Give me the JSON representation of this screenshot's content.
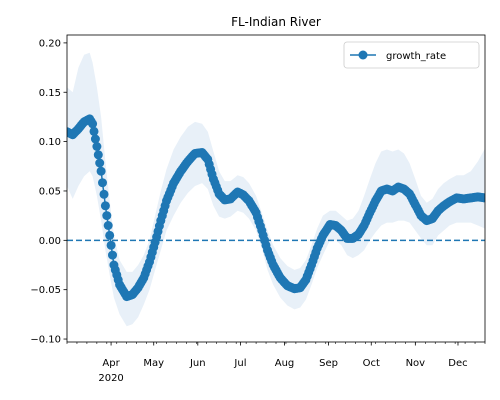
{
  "chart_data": {
    "type": "line",
    "title": "FL-Indian River",
    "xlabel": "",
    "ylabel": "",
    "x_ticks": [
      {
        "date": "2020-04-01",
        "label": "Apr",
        "sublabel": "2020"
      },
      {
        "date": "2020-05-01",
        "label": "May",
        "sublabel": ""
      },
      {
        "date": "2020-06-01",
        "label": "Jun",
        "sublabel": ""
      },
      {
        "date": "2020-07-01",
        "label": "Jul",
        "sublabel": ""
      },
      {
        "date": "2020-08-01",
        "label": "Aug",
        "sublabel": ""
      },
      {
        "date": "2020-09-01",
        "label": "Sep",
        "sublabel": ""
      },
      {
        "date": "2020-10-01",
        "label": "Oct",
        "sublabel": ""
      },
      {
        "date": "2020-11-01",
        "label": "Nov",
        "sublabel": ""
      },
      {
        "date": "2020-12-01",
        "label": "Dec",
        "sublabel": ""
      }
    ],
    "y_ticks": [
      -0.1,
      -0.05,
      0.0,
      0.05,
      0.1,
      0.15,
      0.2
    ],
    "y_tick_labels": [
      "−0.10",
      "−0.05",
      "0.00",
      "0.05",
      "0.10",
      "0.15",
      "0.20"
    ],
    "xlim": [
      "2020-03-01",
      "2020-12-20"
    ],
    "ylim": [
      -0.103,
      0.208
    ],
    "reference_line": {
      "y": 0.0,
      "style": "dashed",
      "color": "#1f77b4"
    },
    "legend": {
      "position": "top-right",
      "entries": [
        "growth_rate"
      ]
    },
    "colors": {
      "series": "#1f77b4",
      "band": "#e8f0f8"
    },
    "series": [
      {
        "name": "growth_rate",
        "points": [
          [
            "2020-03-01",
            0.11
          ],
          [
            "2020-03-05",
            0.107
          ],
          [
            "2020-03-09",
            0.113
          ],
          [
            "2020-03-13",
            0.12
          ],
          [
            "2020-03-17",
            0.123
          ],
          [
            "2020-03-19",
            0.118
          ],
          [
            "2020-03-22",
            0.095
          ],
          [
            "2020-03-25",
            0.07
          ],
          [
            "2020-03-28",
            0.035
          ],
          [
            "2020-03-31",
            0.005
          ],
          [
            "2020-04-03",
            -0.025
          ],
          [
            "2020-04-07",
            -0.045
          ],
          [
            "2020-04-12",
            -0.057
          ],
          [
            "2020-04-16",
            -0.055
          ],
          [
            "2020-04-20",
            -0.048
          ],
          [
            "2020-04-24",
            -0.038
          ],
          [
            "2020-04-28",
            -0.022
          ],
          [
            "2020-05-02",
            -0.002
          ],
          [
            "2020-05-06",
            0.02
          ],
          [
            "2020-05-10",
            0.04
          ],
          [
            "2020-05-15",
            0.058
          ],
          [
            "2020-05-20",
            0.07
          ],
          [
            "2020-05-25",
            0.08
          ],
          [
            "2020-05-30",
            0.088
          ],
          [
            "2020-06-04",
            0.089
          ],
          [
            "2020-06-08",
            0.082
          ],
          [
            "2020-06-12",
            0.062
          ],
          [
            "2020-06-16",
            0.047
          ],
          [
            "2020-06-20",
            0.041
          ],
          [
            "2020-06-24",
            0.042
          ],
          [
            "2020-06-29",
            0.049
          ],
          [
            "2020-07-03",
            0.046
          ],
          [
            "2020-07-07",
            0.04
          ],
          [
            "2020-07-12",
            0.028
          ],
          [
            "2020-07-16",
            0.01
          ],
          [
            "2020-07-20",
            -0.01
          ],
          [
            "2020-07-24",
            -0.025
          ],
          [
            "2020-07-29",
            -0.038
          ],
          [
            "2020-08-03",
            -0.046
          ],
          [
            "2020-08-08",
            -0.049
          ],
          [
            "2020-08-12",
            -0.048
          ],
          [
            "2020-08-16",
            -0.04
          ],
          [
            "2020-08-20",
            -0.025
          ],
          [
            "2020-08-24",
            -0.008
          ],
          [
            "2020-08-28",
            0.005
          ],
          [
            "2020-09-02",
            0.016
          ],
          [
            "2020-09-06",
            0.015
          ],
          [
            "2020-09-10",
            0.01
          ],
          [
            "2020-09-14",
            0.002
          ],
          [
            "2020-09-18",
            0.002
          ],
          [
            "2020-09-22",
            0.006
          ],
          [
            "2020-09-26",
            0.015
          ],
          [
            "2020-09-30",
            0.028
          ],
          [
            "2020-10-04",
            0.04
          ],
          [
            "2020-10-08",
            0.05
          ],
          [
            "2020-10-12",
            0.052
          ],
          [
            "2020-10-16",
            0.05
          ],
          [
            "2020-10-20",
            0.054
          ],
          [
            "2020-10-24",
            0.052
          ],
          [
            "2020-10-28",
            0.047
          ],
          [
            "2020-11-01",
            0.036
          ],
          [
            "2020-11-05",
            0.025
          ],
          [
            "2020-11-09",
            0.02
          ],
          [
            "2020-11-13",
            0.022
          ],
          [
            "2020-11-17",
            0.03
          ],
          [
            "2020-11-21",
            0.035
          ],
          [
            "2020-11-25",
            0.039
          ],
          [
            "2020-11-30",
            0.043
          ],
          [
            "2020-12-05",
            0.042
          ],
          [
            "2020-12-10",
            0.043
          ],
          [
            "2020-12-15",
            0.044
          ],
          [
            "2020-12-20",
            0.043
          ]
        ],
        "band_upper": [
          [
            "2020-03-01",
            0.155
          ],
          [
            "2020-03-05",
            0.15
          ],
          [
            "2020-03-09",
            0.175
          ],
          [
            "2020-03-13",
            0.188
          ],
          [
            "2020-03-17",
            0.19
          ],
          [
            "2020-03-19",
            0.18
          ],
          [
            "2020-03-22",
            0.155
          ],
          [
            "2020-03-25",
            0.125
          ],
          [
            "2020-03-28",
            0.08
          ],
          [
            "2020-03-31",
            0.04
          ],
          [
            "2020-04-03",
            0.005
          ],
          [
            "2020-04-07",
            -0.02
          ],
          [
            "2020-04-12",
            -0.032
          ],
          [
            "2020-04-16",
            -0.032
          ],
          [
            "2020-04-20",
            -0.025
          ],
          [
            "2020-04-24",
            -0.015
          ],
          [
            "2020-04-28",
            0.0
          ],
          [
            "2020-05-02",
            0.025
          ],
          [
            "2020-05-06",
            0.05
          ],
          [
            "2020-05-10",
            0.072
          ],
          [
            "2020-05-15",
            0.092
          ],
          [
            "2020-05-20",
            0.105
          ],
          [
            "2020-05-25",
            0.115
          ],
          [
            "2020-05-30",
            0.12
          ],
          [
            "2020-06-04",
            0.118
          ],
          [
            "2020-06-08",
            0.11
          ],
          [
            "2020-06-12",
            0.09
          ],
          [
            "2020-06-16",
            0.07
          ],
          [
            "2020-06-20",
            0.06
          ],
          [
            "2020-06-24",
            0.06
          ],
          [
            "2020-06-29",
            0.066
          ],
          [
            "2020-07-03",
            0.064
          ],
          [
            "2020-07-07",
            0.058
          ],
          [
            "2020-07-12",
            0.045
          ],
          [
            "2020-07-16",
            0.028
          ],
          [
            "2020-07-20",
            0.01
          ],
          [
            "2020-07-24",
            -0.005
          ],
          [
            "2020-07-29",
            -0.018
          ],
          [
            "2020-08-03",
            -0.026
          ],
          [
            "2020-08-08",
            -0.03
          ],
          [
            "2020-08-12",
            -0.028
          ],
          [
            "2020-08-16",
            -0.02
          ],
          [
            "2020-08-20",
            -0.005
          ],
          [
            "2020-08-24",
            0.012
          ],
          [
            "2020-08-28",
            0.025
          ],
          [
            "2020-09-02",
            0.03
          ],
          [
            "2020-09-06",
            0.03
          ],
          [
            "2020-09-10",
            0.025
          ],
          [
            "2020-09-14",
            0.02
          ],
          [
            "2020-09-18",
            0.022
          ],
          [
            "2020-09-22",
            0.03
          ],
          [
            "2020-09-26",
            0.045
          ],
          [
            "2020-09-30",
            0.062
          ],
          [
            "2020-10-04",
            0.078
          ],
          [
            "2020-10-08",
            0.09
          ],
          [
            "2020-10-12",
            0.092
          ],
          [
            "2020-10-16",
            0.09
          ],
          [
            "2020-10-20",
            0.092
          ],
          [
            "2020-10-24",
            0.088
          ],
          [
            "2020-10-28",
            0.078
          ],
          [
            "2020-11-01",
            0.062
          ],
          [
            "2020-11-05",
            0.045
          ],
          [
            "2020-11-09",
            0.038
          ],
          [
            "2020-11-13",
            0.042
          ],
          [
            "2020-11-17",
            0.052
          ],
          [
            "2020-11-21",
            0.058
          ],
          [
            "2020-11-25",
            0.062
          ],
          [
            "2020-11-30",
            0.066
          ],
          [
            "2020-12-05",
            0.066
          ],
          [
            "2020-12-10",
            0.07
          ],
          [
            "2020-12-15",
            0.08
          ],
          [
            "2020-12-20",
            0.093
          ]
        ],
        "band_lower": [
          [
            "2020-03-01",
            0.055
          ],
          [
            "2020-03-05",
            0.042
          ],
          [
            "2020-03-09",
            0.055
          ],
          [
            "2020-03-13",
            0.065
          ],
          [
            "2020-03-17",
            0.07
          ],
          [
            "2020-03-19",
            0.065
          ],
          [
            "2020-03-22",
            0.045
          ],
          [
            "2020-03-25",
            0.02
          ],
          [
            "2020-03-28",
            -0.01
          ],
          [
            "2020-03-31",
            -0.035
          ],
          [
            "2020-04-03",
            -0.058
          ],
          [
            "2020-04-07",
            -0.075
          ],
          [
            "2020-04-12",
            -0.087
          ],
          [
            "2020-04-16",
            -0.085
          ],
          [
            "2020-04-20",
            -0.078
          ],
          [
            "2020-04-24",
            -0.065
          ],
          [
            "2020-04-28",
            -0.05
          ],
          [
            "2020-05-02",
            -0.03
          ],
          [
            "2020-05-06",
            -0.01
          ],
          [
            "2020-05-10",
            0.01
          ],
          [
            "2020-05-15",
            0.025
          ],
          [
            "2020-05-20",
            0.038
          ],
          [
            "2020-05-25",
            0.048
          ],
          [
            "2020-05-30",
            0.055
          ],
          [
            "2020-06-04",
            0.058
          ],
          [
            "2020-06-08",
            0.052
          ],
          [
            "2020-06-12",
            0.035
          ],
          [
            "2020-06-16",
            0.024
          ],
          [
            "2020-06-20",
            0.022
          ],
          [
            "2020-06-24",
            0.024
          ],
          [
            "2020-06-29",
            0.03
          ],
          [
            "2020-07-03",
            0.028
          ],
          [
            "2020-07-07",
            0.022
          ],
          [
            "2020-07-12",
            0.01
          ],
          [
            "2020-07-16",
            -0.008
          ],
          [
            "2020-07-20",
            -0.03
          ],
          [
            "2020-07-24",
            -0.045
          ],
          [
            "2020-07-29",
            -0.058
          ],
          [
            "2020-08-03",
            -0.066
          ],
          [
            "2020-08-08",
            -0.07
          ],
          [
            "2020-08-12",
            -0.068
          ],
          [
            "2020-08-16",
            -0.06
          ],
          [
            "2020-08-20",
            -0.045
          ],
          [
            "2020-08-24",
            -0.028
          ],
          [
            "2020-08-28",
            -0.015
          ],
          [
            "2020-09-02",
            0.0
          ],
          [
            "2020-09-06",
            0.0
          ],
          [
            "2020-09-10",
            -0.005
          ],
          [
            "2020-09-14",
            -0.015
          ],
          [
            "2020-09-18",
            -0.018
          ],
          [
            "2020-09-22",
            -0.015
          ],
          [
            "2020-09-26",
            -0.01
          ],
          [
            "2020-09-30",
            0.0
          ],
          [
            "2020-10-04",
            0.008
          ],
          [
            "2020-10-08",
            0.015
          ],
          [
            "2020-10-12",
            0.018
          ],
          [
            "2020-10-16",
            0.018
          ],
          [
            "2020-10-20",
            0.02
          ],
          [
            "2020-10-24",
            0.02
          ],
          [
            "2020-10-28",
            0.018
          ],
          [
            "2020-11-01",
            0.01
          ],
          [
            "2020-11-05",
            0.002
          ],
          [
            "2020-11-09",
            -0.005
          ],
          [
            "2020-11-13",
            -0.005
          ],
          [
            "2020-11-17",
            0.005
          ],
          [
            "2020-11-21",
            0.01
          ],
          [
            "2020-11-25",
            0.015
          ],
          [
            "2020-11-30",
            0.018
          ],
          [
            "2020-12-05",
            0.018
          ],
          [
            "2020-12-10",
            0.018
          ],
          [
            "2020-12-15",
            0.015
          ],
          [
            "2020-12-20",
            0.012
          ]
        ]
      }
    ]
  }
}
